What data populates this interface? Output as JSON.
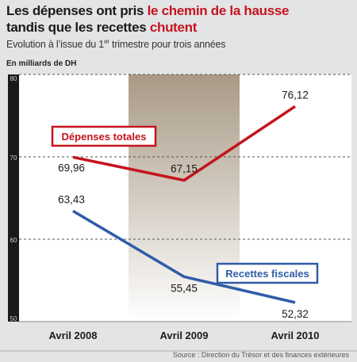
{
  "header": {
    "title_part1": "Les dépenses ont pris ",
    "title_highlight1": "le chemin de la hausse",
    "title_part2": "tandis que les recettes ",
    "title_highlight2": "chutent",
    "subtitle_pre": "Evolution à l’issue du 1",
    "subtitle_sup": "er",
    "subtitle_post": " trimestre pour trois années",
    "unit": "En milliards de DH"
  },
  "source": "Source : Direction du Trésor et des finances extérieures",
  "colors": {
    "expenses": "#c4141c",
    "revenues": "#2f5ca8",
    "title_highlight": "#c4141c",
    "highlight_band": "#a99a86"
  },
  "chart_data": {
    "type": "line",
    "categories": [
      "Avril 2008",
      "Avril 2009",
      "Avril 2010"
    ],
    "ylim": [
      50,
      80
    ],
    "yticks": [
      50,
      60,
      70,
      80
    ],
    "grid": true,
    "series": [
      {
        "name": "Dépenses totales",
        "values": [
          69.96,
          67.15,
          76.12
        ],
        "labels": [
          "69,96",
          "67,15",
          "76,12"
        ]
      },
      {
        "name": "Recettes fiscales",
        "values": [
          63.43,
          55.45,
          52.32
        ],
        "labels": [
          "63,43",
          "55,45",
          "52,32"
        ]
      }
    ]
  }
}
